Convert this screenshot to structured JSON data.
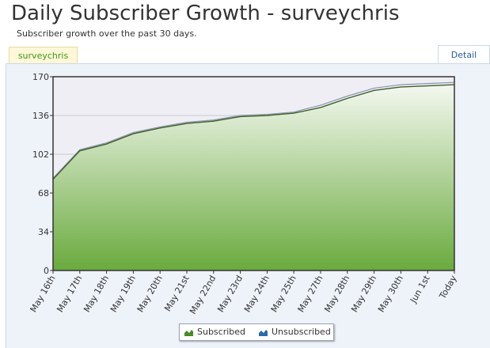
{
  "header": {
    "title": "Daily Subscriber Growth - surveychris",
    "subtitle": "Subscriber growth over the past 30 days."
  },
  "tabs": {
    "user_tab": "surveychris",
    "detail_tab": "Detail"
  },
  "colors": {
    "subscribed_fill_top": "#f4f8f0",
    "subscribed_fill_bottom": "#6aaa3e",
    "subscribed_line": "#3f5f2a",
    "unsubscribed_line": "#8a94a8",
    "tab_text": "#3d9a1a",
    "link_text": "#2a5a9a"
  },
  "legend": [
    {
      "label": "Subscribed",
      "icon": "area-chart-icon",
      "color": "#4a8a2a"
    },
    {
      "label": "Unsubscribed",
      "icon": "area-chart-icon",
      "color": "#2a6aa8"
    }
  ],
  "chart_data": {
    "type": "area",
    "title": "",
    "xlabel": "",
    "ylabel": "",
    "categories": [
      "May 16th",
      "May 17th",
      "May 18th",
      "May 19th",
      "May 20th",
      "May 21st",
      "May 22nd",
      "May 23rd",
      "May 24th",
      "May 25th",
      "May 27th",
      "May 28th",
      "May 29th",
      "May 30th",
      "Jun 1st",
      "Today"
    ],
    "yticks": [
      0,
      34,
      68,
      102,
      136,
      170
    ],
    "ylim": [
      0,
      170
    ],
    "grid": true,
    "legend_position": "bottom-center",
    "series": [
      {
        "name": "Subscribed",
        "values": [
          80,
          105,
          111,
          120,
          125,
          129,
          131,
          135,
          136,
          138,
          143,
          151,
          158,
          161,
          162,
          163
        ]
      },
      {
        "name": "Unsubscribed",
        "values": [
          81,
          106,
          112,
          121,
          126,
          130,
          132,
          136,
          137,
          139,
          145,
          153,
          160,
          163,
          164,
          165
        ]
      }
    ]
  }
}
